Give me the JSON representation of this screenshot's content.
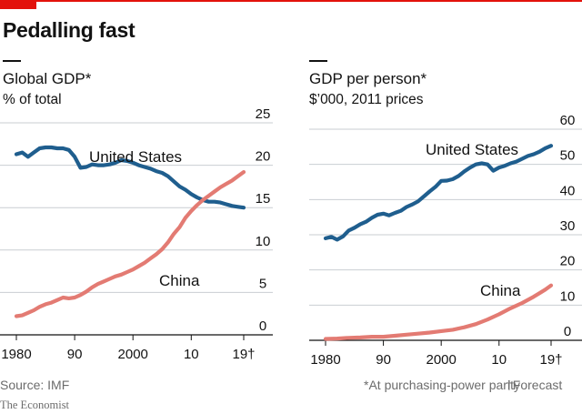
{
  "headline": "Pedalling fast",
  "source": "Source: IMF",
  "brand": "The Economist",
  "footnote_ppp": "*At purchasing-power parity",
  "footnote_forecast": "†Forecast",
  "colors": {
    "us": "#1f5e8e",
    "china": "#e37b73",
    "grid": "#c9ced2",
    "accent": "#e3120b"
  },
  "chart_data": [
    {
      "type": "line",
      "title": "Global GDP*",
      "subtitle": "% of total",
      "x_tick_labels": [
        "1980",
        "90",
        "2000",
        "10",
        "19†"
      ],
      "x_ticks": [
        1980,
        1990,
        2000,
        2010,
        2019
      ],
      "xlim": [
        1980,
        2019
      ],
      "ylim": [
        0,
        25
      ],
      "y_ticks": [
        0,
        5,
        10,
        15,
        20,
        25
      ],
      "grid": true,
      "series": [
        {
          "name": "United States",
          "color": "#1f5e8e",
          "x": [
            1980,
            1981,
            1982,
            1983,
            1984,
            1985,
            1986,
            1987,
            1988,
            1989,
            1990,
            1991,
            1992,
            1993,
            1994,
            1995,
            1996,
            1997,
            1998,
            1999,
            2000,
            2001,
            2002,
            2003,
            2004,
            2005,
            2006,
            2007,
            2008,
            2009,
            2010,
            2011,
            2012,
            2013,
            2014,
            2015,
            2016,
            2017,
            2018,
            2019
          ],
          "values": [
            21.3,
            21.5,
            21.0,
            21.5,
            22.0,
            22.1,
            22.1,
            22.0,
            22.0,
            21.8,
            21.0,
            19.7,
            19.8,
            20.1,
            20.0,
            20.0,
            20.1,
            20.3,
            20.6,
            20.5,
            20.3,
            20.0,
            19.8,
            19.6,
            19.3,
            19.1,
            18.7,
            18.1,
            17.5,
            17.1,
            16.6,
            16.2,
            15.9,
            15.7,
            15.7,
            15.6,
            15.4,
            15.2,
            15.1,
            15.0
          ]
        },
        {
          "name": "China",
          "color": "#e37b73",
          "x": [
            1980,
            1981,
            1982,
            1983,
            1984,
            1985,
            1986,
            1987,
            1988,
            1989,
            1990,
            1991,
            1992,
            1993,
            1994,
            1995,
            1996,
            1997,
            1998,
            1999,
            2000,
            2001,
            2002,
            2003,
            2004,
            2005,
            2006,
            2007,
            2008,
            2009,
            2010,
            2011,
            2012,
            2013,
            2014,
            2015,
            2016,
            2017,
            2018,
            2019
          ],
          "values": [
            2.2,
            2.3,
            2.6,
            2.9,
            3.3,
            3.6,
            3.8,
            4.1,
            4.4,
            4.3,
            4.4,
            4.7,
            5.1,
            5.6,
            6.0,
            6.3,
            6.6,
            6.9,
            7.1,
            7.4,
            7.7,
            8.1,
            8.5,
            9.0,
            9.5,
            10.1,
            10.9,
            11.9,
            12.7,
            13.8,
            14.6,
            15.3,
            15.9,
            16.4,
            16.9,
            17.4,
            17.8,
            18.2,
            18.7,
            19.2
          ]
        }
      ]
    },
    {
      "type": "line",
      "title": "GDP per person*",
      "subtitle": "$’000, 2011 prices",
      "x_tick_labels": [
        "1980",
        "90",
        "2000",
        "10",
        "19†"
      ],
      "x_ticks": [
        1980,
        1990,
        2000,
        2010,
        2019
      ],
      "xlim": [
        1980,
        2019
      ],
      "ylim": [
        0,
        60
      ],
      "y_ticks": [
        0,
        10,
        20,
        30,
        40,
        50,
        60
      ],
      "grid": true,
      "series": [
        {
          "name": "United States",
          "color": "#1f5e8e",
          "x": [
            1980,
            1981,
            1982,
            1983,
            1984,
            1985,
            1986,
            1987,
            1988,
            1989,
            1990,
            1991,
            1992,
            1993,
            1994,
            1995,
            1996,
            1997,
            1998,
            1999,
            2000,
            2001,
            2002,
            2003,
            2004,
            2005,
            2006,
            2007,
            2008,
            2009,
            2010,
            2011,
            2012,
            2013,
            2014,
            2015,
            2016,
            2017,
            2018,
            2019
          ],
          "values": [
            29.0,
            29.4,
            28.6,
            29.5,
            31.2,
            32.0,
            33.0,
            33.7,
            34.8,
            35.7,
            36.0,
            35.5,
            36.2,
            36.8,
            37.9,
            38.6,
            39.5,
            40.9,
            42.3,
            43.6,
            45.3,
            45.4,
            45.8,
            46.7,
            48.0,
            49.1,
            50.0,
            50.3,
            50.0,
            48.2,
            49.1,
            49.6,
            50.3,
            50.8,
            51.6,
            52.4,
            52.9,
            53.6,
            54.6,
            55.3
          ]
        },
        {
          "name": "China",
          "color": "#e37b73",
          "x": [
            1980,
            1982,
            1984,
            1986,
            1988,
            1990,
            1992,
            1994,
            1996,
            1998,
            2000,
            2002,
            2004,
            2006,
            2008,
            2010,
            2012,
            2014,
            2016,
            2017,
            2018,
            2019
          ],
          "values": [
            0.4,
            0.5,
            0.7,
            0.8,
            1.0,
            1.0,
            1.3,
            1.6,
            1.9,
            2.2,
            2.6,
            3.0,
            3.7,
            4.6,
            5.9,
            7.4,
            9.1,
            10.6,
            12.4,
            13.4,
            14.4,
            15.6
          ]
        }
      ]
    }
  ]
}
